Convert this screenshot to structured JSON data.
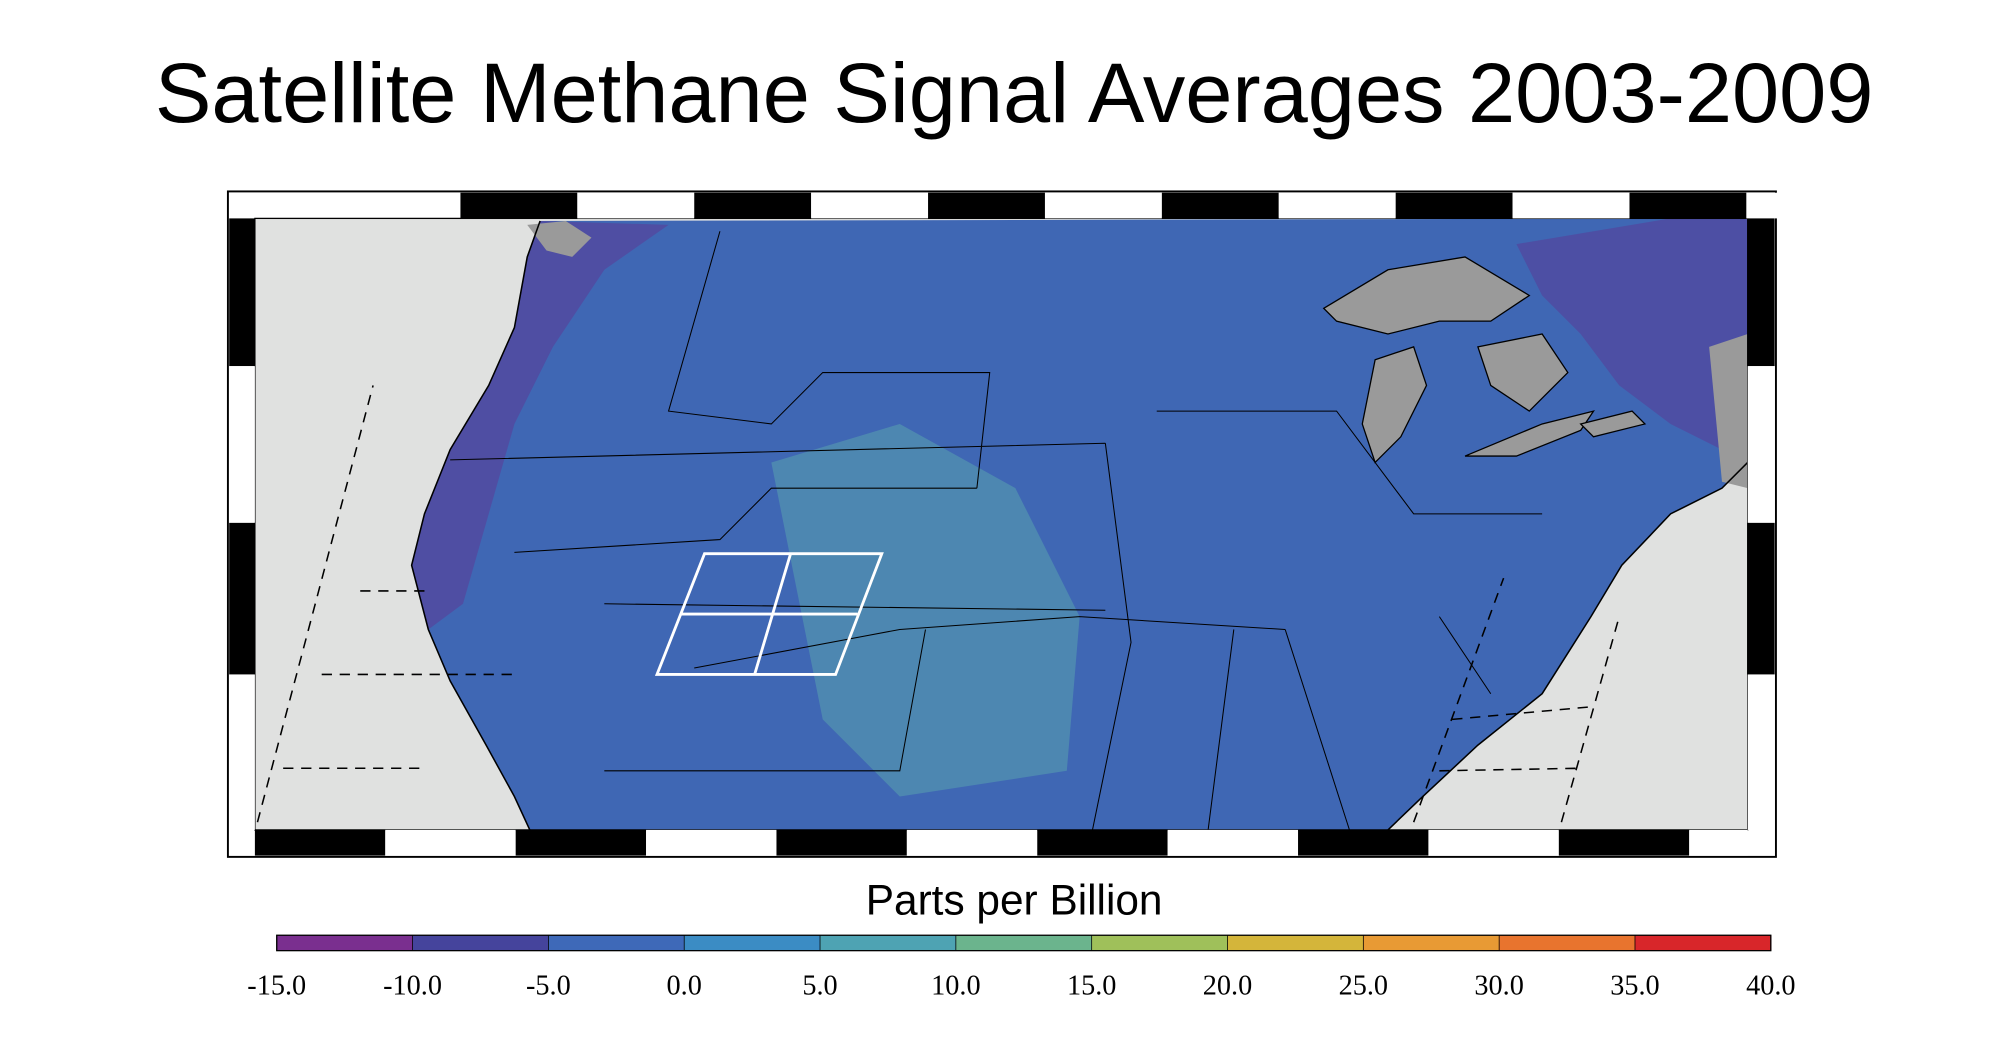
{
  "chart_data": {
    "type": "colormap",
    "title": "Satellite Methane Signal Averages 2003-2009",
    "colorbar": {
      "label": "Parts per Billion",
      "lim": [
        -15,
        40
      ],
      "ticks": [
        {
          "value": -15,
          "label": "-15.0"
        },
        {
          "value": -10,
          "label": "-10.0"
        },
        {
          "value": -5,
          "label": "-5.0"
        },
        {
          "value": 0,
          "label": "0.0"
        },
        {
          "value": 5,
          "label": "5.0"
        },
        {
          "value": 10,
          "label": "10.0"
        },
        {
          "value": 15,
          "label": "15.0"
        },
        {
          "value": 20,
          "label": "20.0"
        },
        {
          "value": 25,
          "label": "25.0"
        },
        {
          "value": 30,
          "label": "30.0"
        },
        {
          "value": 35,
          "label": "35.0"
        },
        {
          "value": 40,
          "label": "40.0"
        }
      ],
      "colors": [
        "#7a2f8f",
        "#45449c",
        "#3e69b8",
        "#3b8cc4",
        "#4ea3b3",
        "#6bb48d",
        "#9fc05a",
        "#d4b53a",
        "#e89a34",
        "#e8742e",
        "#d8262a"
      ]
    }
  }
}
